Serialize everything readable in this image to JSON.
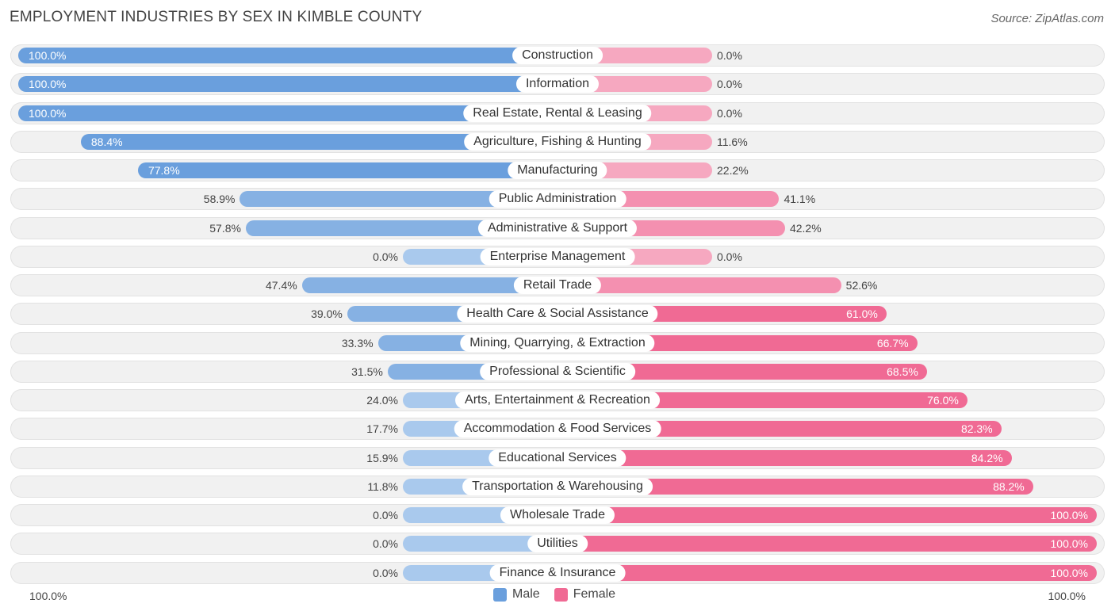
{
  "title": "EMPLOYMENT INDUSTRIES BY SEX IN KIMBLE COUNTY",
  "source": "Source: ZipAtlas.com",
  "colors": {
    "male": "#6a9fdd",
    "male_light": "#a9c9ed",
    "female": "#f06a94",
    "female_light": "#f6a8c0"
  },
  "axis": {
    "left_label": "100.0%",
    "right_label": "100.0%"
  },
  "legend": {
    "male": "Male",
    "female": "Female"
  },
  "chart_data": {
    "type": "bar",
    "orientation": "horizontal-diverging",
    "title": "EMPLOYMENT INDUSTRIES BY SEX IN KIMBLE COUNTY",
    "xlim": [
      -100,
      100
    ],
    "categories": [
      "Construction",
      "Information",
      "Real Estate, Rental & Leasing",
      "Agriculture, Fishing & Hunting",
      "Manufacturing",
      "Public Administration",
      "Administrative & Support",
      "Enterprise Management",
      "Retail Trade",
      "Health Care & Social Assistance",
      "Mining, Quarrying, & Extraction",
      "Professional & Scientific",
      "Arts, Entertainment & Recreation",
      "Accommodation & Food Services",
      "Educational Services",
      "Transportation & Warehousing",
      "Wholesale Trade",
      "Utilities",
      "Finance & Insurance"
    ],
    "series": [
      {
        "name": "Male",
        "values": [
          100.0,
          100.0,
          100.0,
          88.4,
          77.8,
          58.9,
          57.8,
          0.0,
          47.4,
          39.0,
          33.3,
          31.5,
          24.0,
          17.7,
          15.9,
          11.8,
          0.0,
          0.0,
          0.0
        ],
        "labels": [
          "100.0%",
          "100.0%",
          "100.0%",
          "88.4%",
          "77.8%",
          "58.9%",
          "57.8%",
          "0.0%",
          "47.4%",
          "39.0%",
          "33.3%",
          "31.5%",
          "24.0%",
          "17.7%",
          "15.9%",
          "11.8%",
          "0.0%",
          "0.0%",
          "0.0%"
        ]
      },
      {
        "name": "Female",
        "values": [
          0.0,
          0.0,
          0.0,
          11.6,
          22.2,
          41.1,
          42.2,
          0.0,
          52.6,
          61.0,
          66.7,
          68.5,
          76.0,
          82.3,
          84.2,
          88.2,
          100.0,
          100.0,
          100.0
        ],
        "labels": [
          "0.0%",
          "0.0%",
          "0.0%",
          "11.6%",
          "22.2%",
          "41.1%",
          "42.2%",
          "0.0%",
          "52.6%",
          "61.0%",
          "66.7%",
          "68.5%",
          "76.0%",
          "82.3%",
          "84.2%",
          "88.2%",
          "100.0%",
          "100.0%",
          "100.0%"
        ]
      }
    ],
    "legend": [
      "Male",
      "Female"
    ]
  }
}
